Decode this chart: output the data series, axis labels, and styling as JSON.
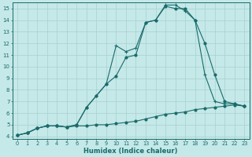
{
  "xlabel": "Humidex (Indice chaleur)",
  "xlim": [
    -0.5,
    23.5
  ],
  "ylim": [
    3.8,
    15.5
  ],
  "xticks": [
    0,
    1,
    2,
    3,
    4,
    5,
    6,
    7,
    8,
    9,
    10,
    11,
    12,
    13,
    14,
    15,
    16,
    17,
    18,
    19,
    20,
    21,
    22,
    23
  ],
  "yticks": [
    4,
    5,
    6,
    7,
    8,
    9,
    10,
    11,
    12,
    13,
    14,
    15
  ],
  "bg_color": "#c5e8e8",
  "grid_color": "#a8d0d0",
  "line_color": "#1a6b6b",
  "line1_x": [
    0,
    1,
    2,
    3,
    4,
    5,
    6,
    7,
    8,
    9,
    10,
    11,
    12,
    13,
    14,
    15,
    16,
    17,
    18,
    19,
    20,
    21,
    22,
    23
  ],
  "line1_y": [
    4.1,
    4.3,
    4.7,
    4.9,
    4.9,
    4.8,
    4.9,
    4.9,
    5.0,
    5.0,
    5.1,
    5.2,
    5.3,
    5.5,
    5.7,
    5.9,
    6.0,
    6.1,
    6.3,
    6.4,
    6.5,
    6.6,
    6.7,
    6.6
  ],
  "line2_x": [
    0,
    1,
    2,
    3,
    4,
    5,
    6,
    7,
    8,
    9,
    10,
    11,
    12,
    13,
    14,
    15,
    16,
    17,
    18,
    19,
    20,
    21,
    22,
    23
  ],
  "line2_y": [
    4.1,
    4.3,
    4.7,
    4.9,
    4.9,
    4.8,
    5.0,
    6.5,
    7.5,
    8.5,
    9.2,
    10.8,
    11.0,
    13.8,
    14.0,
    15.2,
    15.0,
    15.0,
    14.0,
    12.0,
    9.3,
    7.0,
    6.8,
    6.6
  ],
  "line3_x": [
    0,
    1,
    2,
    3,
    4,
    5,
    6,
    7,
    8,
    9,
    10,
    11,
    12,
    13,
    14,
    15,
    16,
    17,
    18,
    19,
    20,
    21,
    22,
    23
  ],
  "line3_y": [
    4.1,
    4.3,
    4.7,
    4.9,
    4.9,
    4.8,
    5.0,
    6.5,
    7.5,
    8.5,
    11.8,
    11.3,
    11.6,
    13.8,
    14.0,
    15.3,
    15.3,
    14.8,
    14.0,
    9.3,
    7.0,
    6.8,
    6.8,
    6.6
  ]
}
